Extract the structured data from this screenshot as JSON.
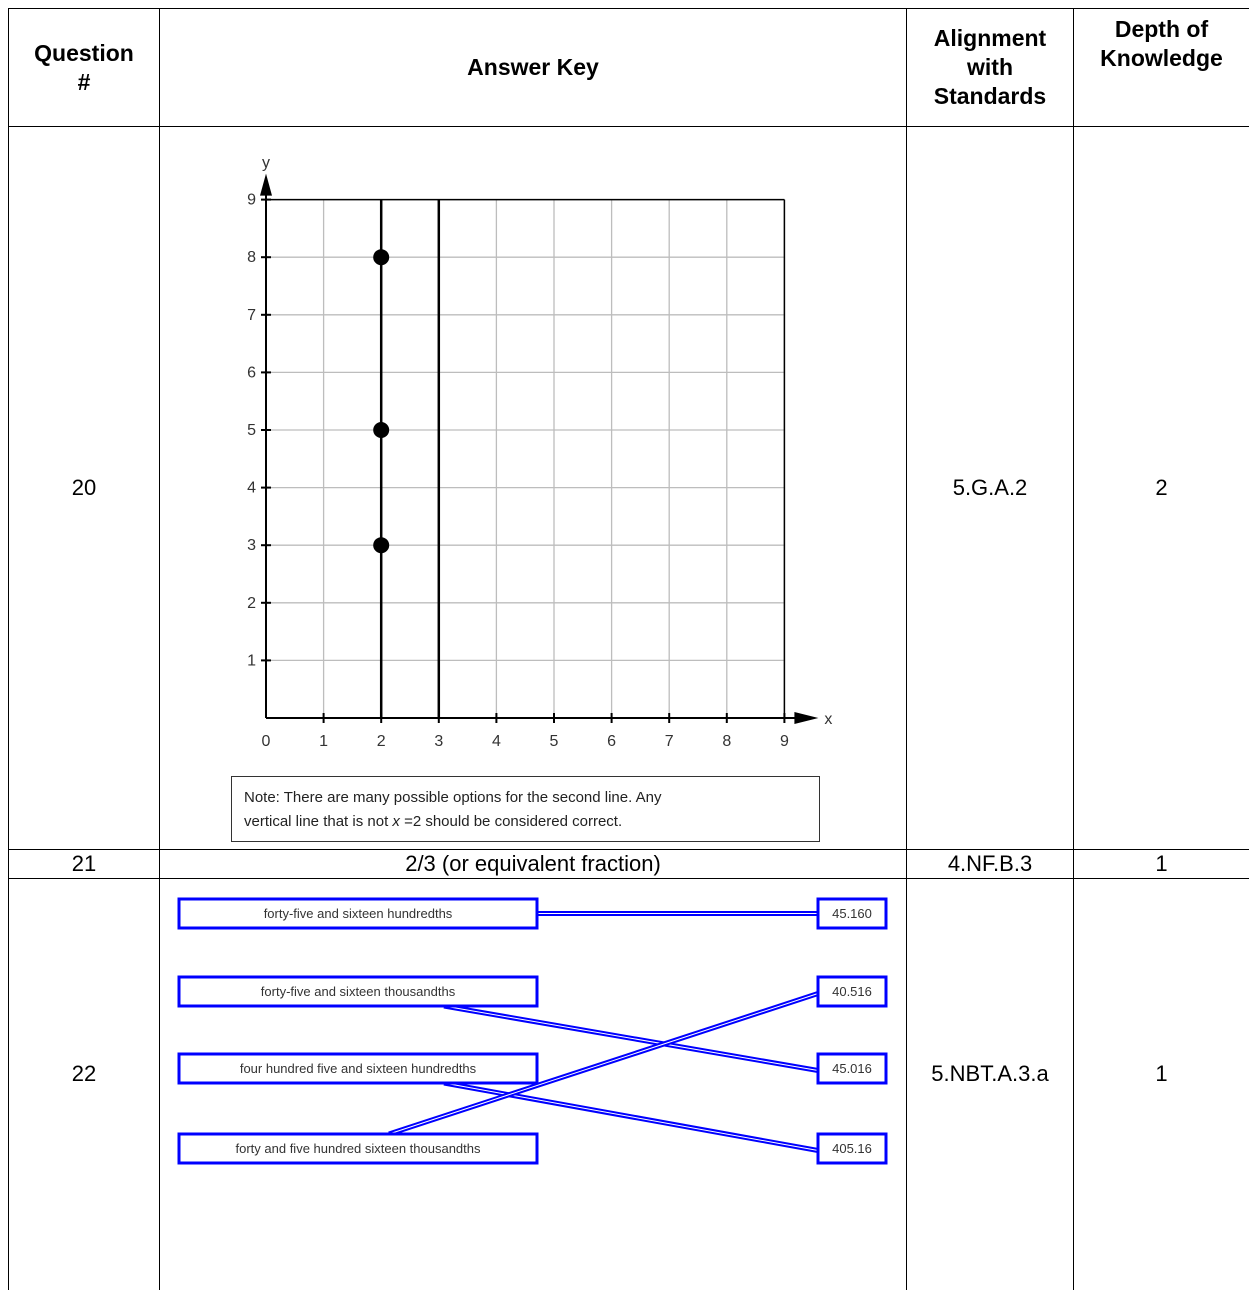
{
  "table": {
    "headers": {
      "question": "Question #",
      "answer_key": "Answer Key",
      "alignment": "Alignment with Standards",
      "dok": "Depth of Knowledge"
    },
    "rows": [
      {
        "question": "20",
        "standard": "5.G.A.2",
        "dok": "2"
      },
      {
        "question": "21",
        "answer": "2/3 (or equivalent fraction)",
        "standard": "4.NF.B.3",
        "dok": "1"
      },
      {
        "question": "22",
        "standard": "5.NBT.A.3.a",
        "dok": "1"
      }
    ]
  },
  "q20": {
    "note_line1": "Note: There are many possible options for the second line. Any",
    "note_line2_a": "vertical line that is not ",
    "note_line2_var": "x",
    "note_line2_b": " =2 should be considered correct."
  },
  "chart_data": {
    "type": "scatter",
    "xlabel": "x",
    "ylabel": "y",
    "xlim": [
      0,
      9
    ],
    "ylim": [
      0,
      9
    ],
    "x_ticks": [
      "0",
      "1",
      "2",
      "3",
      "4",
      "5",
      "6",
      "7",
      "8",
      "9"
    ],
    "y_ticks": [
      "1",
      "2",
      "3",
      "4",
      "5",
      "6",
      "7",
      "8",
      "9"
    ],
    "grid": true,
    "points": [
      {
        "x": 2,
        "y": 8
      },
      {
        "x": 2,
        "y": 5
      },
      {
        "x": 2,
        "y": 3
      }
    ],
    "vertical_lines": [
      2,
      3
    ]
  },
  "q22": {
    "left_items": [
      "forty-five and sixteen hundredths",
      "forty-five and sixteen thousandths",
      "four hundred five and sixteen hundredths",
      "forty and five hundred sixteen thousandths"
    ],
    "right_items": [
      "45.160",
      "40.516",
      "45.016",
      "405.16"
    ],
    "matches": [
      [
        0,
        0
      ],
      [
        1,
        2
      ],
      [
        2,
        3
      ],
      [
        3,
        1
      ]
    ],
    "line_color": "#0000ff"
  }
}
